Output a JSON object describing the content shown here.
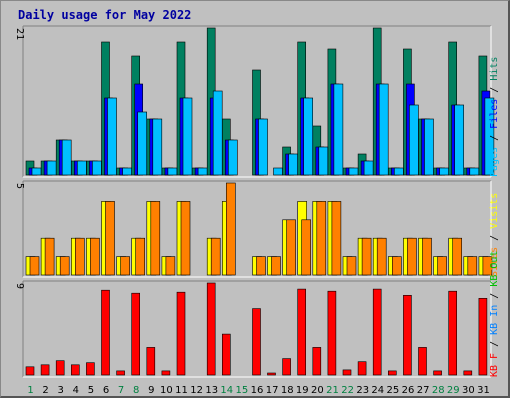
{
  "chart_data": {
    "type": "bar",
    "title": "Daily usage for May 2022",
    "categories": [
      "1",
      "2",
      "3",
      "4",
      "5",
      "6",
      "7",
      "8",
      "9",
      "10",
      "11",
      "12",
      "13",
      "14",
      "15",
      "16",
      "17",
      "18",
      "19",
      "20",
      "21",
      "22",
      "23",
      "24",
      "25",
      "26",
      "27",
      "28",
      "29",
      "30",
      "31"
    ],
    "weekend_days": [
      "1",
      "7",
      "8",
      "14",
      "15",
      "21",
      "22",
      "28",
      "29"
    ],
    "panels": [
      {
        "name": "top",
        "ymax_label": "21",
        "ylim": [
          0,
          21
        ],
        "legend": [
          "Pages",
          "/",
          "Files",
          "/",
          "Hits"
        ],
        "series": [
          {
            "name": "Hits",
            "color": "#008060",
            "values": [
              2,
              2,
              5,
              2,
              2,
              19,
              1,
              17,
              8,
              1,
              19,
              1,
              21,
              8,
              0,
              15,
              0,
              4,
              19,
              7,
              18,
              1,
              3,
              21,
              1,
              18,
              8,
              1,
              19,
              1,
              17
            ]
          },
          {
            "name": "Files",
            "color": "#0000ff",
            "values": [
              1,
              2,
              5,
              2,
              2,
              11,
              1,
              13,
              8,
              1,
              11,
              1,
              11,
              5,
              0,
              8,
              0,
              3,
              11,
              4,
              13,
              1,
              2,
              13,
              1,
              13,
              8,
              1,
              10,
              1,
              12
            ]
          },
          {
            "name": "Pages",
            "color": "#00c0ff",
            "values": [
              1,
              2,
              5,
              2,
              2,
              11,
              1,
              9,
              8,
              1,
              11,
              1,
              12,
              5,
              0,
              8,
              1,
              3,
              11,
              4,
              13,
              1,
              2,
              13,
              1,
              10,
              8,
              1,
              10,
              1,
              11
            ]
          }
        ]
      },
      {
        "name": "middle",
        "ymax_label": "5",
        "ylim": [
          0,
          5
        ],
        "legend": [
          "Sites",
          "/",
          "Visits"
        ],
        "series": [
          {
            "name": "Visits",
            "color": "#ffff00",
            "values": [
              1,
              2,
              1,
              2,
              2,
              4,
              1,
              2,
              4,
              1,
              4,
              0,
              2,
              4,
              0,
              1,
              1,
              3,
              4,
              4,
              4,
              1,
              2,
              2,
              1,
              2,
              2,
              1,
              2,
              1,
              1
            ]
          },
          {
            "name": "Sites",
            "color": "#ff8000",
            "values": [
              1,
              2,
              1,
              2,
              2,
              4,
              1,
              2,
              4,
              1,
              4,
              0,
              2,
              5,
              0,
              1,
              1,
              3,
              3,
              4,
              4,
              1,
              2,
              2,
              1,
              2,
              2,
              1,
              2,
              1,
              1
            ]
          }
        ]
      },
      {
        "name": "bottom",
        "ymax_label": "9",
        "ylim": [
          0,
          9
        ],
        "legend": [
          "KB F",
          "/",
          "KB In",
          "/",
          "KB Out"
        ],
        "series": [
          {
            "name": "KB F",
            "color": "#ff0000",
            "values": [
              0.8,
              1,
              1.4,
              1,
              1.2,
              8.3,
              0.4,
              8,
              2.7,
              0.4,
              8.1,
              0,
              9,
              4,
              0,
              6.5,
              0.2,
              1.6,
              8.4,
              2.7,
              8.2,
              0.5,
              1.3,
              8.4,
              0.4,
              7.8,
              2.7,
              0.4,
              8.2,
              0.4,
              7.5
            ]
          }
        ]
      }
    ],
    "colors": {
      "title": "#0000a0",
      "weekday_label": "#000000",
      "weekend_label": "#008040",
      "legend_pages": "#00c0ff",
      "legend_files": "#0000ff",
      "legend_hits": "#008060",
      "legend_sites": "#ff8000",
      "legend_visits": "#ffff00",
      "legend_kbf": "#ff0000",
      "legend_kbin": "#0080ff",
      "legend_kbout": "#00c000"
    }
  }
}
